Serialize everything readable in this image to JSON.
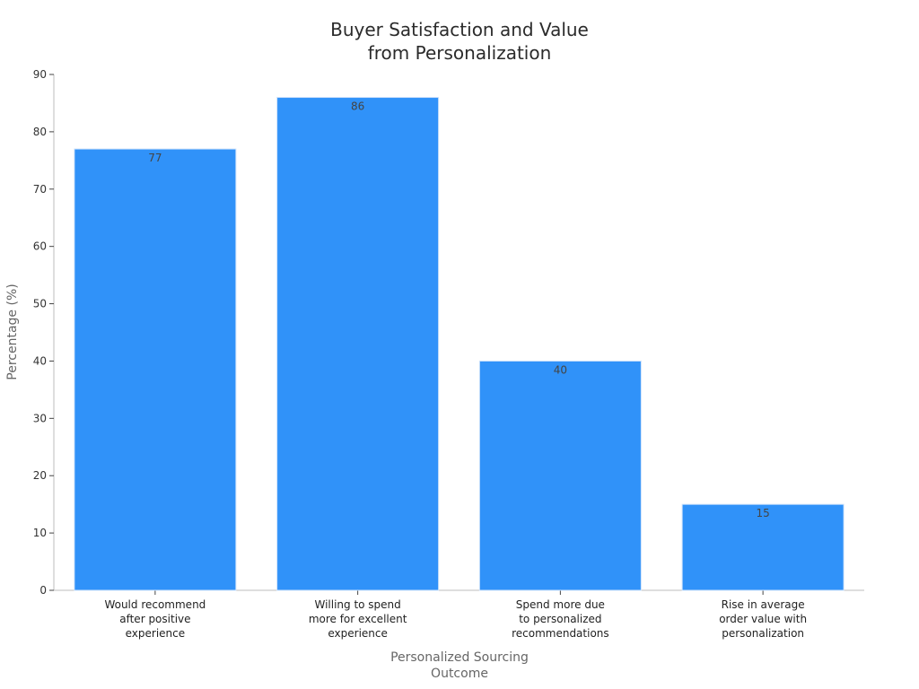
{
  "chart_data": {
    "type": "bar",
    "title": [
      "Buyer Satisfaction and Value",
      "from Personalization"
    ],
    "xlabel": [
      "Personalized Sourcing",
      "Outcome"
    ],
    "ylabel": "Percentage (%)",
    "ylim": [
      0,
      90
    ],
    "yticks": [
      0,
      10,
      20,
      30,
      40,
      50,
      60,
      70,
      80,
      90
    ],
    "categories": [
      [
        "Would recommend",
        "after positive",
        "experience"
      ],
      [
        "Willing to spend",
        "more for excellent",
        "experience"
      ],
      [
        "Spend more due",
        "to personalized",
        "recommendations"
      ],
      [
        "Rise in average",
        "order value with",
        "personalization"
      ]
    ],
    "values": [
      77,
      86,
      40,
      15
    ],
    "data_labels": [
      "77",
      "86",
      "40",
      "15"
    ],
    "bar_color": "#3092f9",
    "grid": false,
    "legend": "none"
  }
}
